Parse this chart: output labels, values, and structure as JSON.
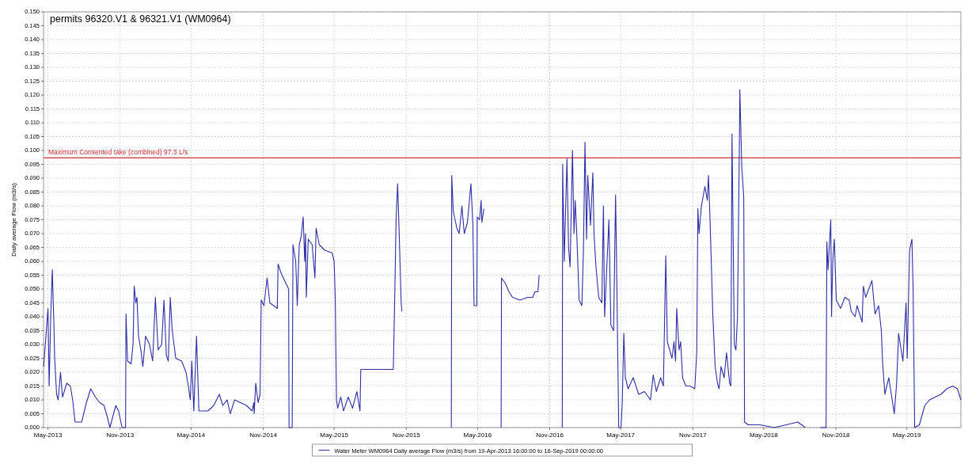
{
  "chart_data": {
    "type": "line",
    "title": "permits 96320.V1 & 96321.V1 (WM0964)",
    "ylabel": "Daily average Flow (m3/s)",
    "xlim": [
      "2013-04-19T16:00",
      "2019-09-16"
    ],
    "xticks": [
      {
        "value": "2013-05-01",
        "label": "May-2013"
      },
      {
        "value": "2013-11-01",
        "label": "Nov-2013"
      },
      {
        "value": "2014-05-01",
        "label": "May-2014"
      },
      {
        "value": "2014-11-01",
        "label": "Nov-2014"
      },
      {
        "value": "2015-05-01",
        "label": "May-2015"
      },
      {
        "value": "2015-11-01",
        "label": "Nov-2015"
      },
      {
        "value": "2016-05-01",
        "label": "May-2016"
      },
      {
        "value": "2016-11-01",
        "label": "Nov-2016"
      },
      {
        "value": "2017-05-01",
        "label": "May-2017"
      },
      {
        "value": "2017-11-01",
        "label": "Nov-2017"
      },
      {
        "value": "2018-05-01",
        "label": "May-2018"
      },
      {
        "value": "2018-11-01",
        "label": "Nov-2018"
      },
      {
        "value": "2019-05-01",
        "label": "May-2019"
      }
    ],
    "ylim": [
      0,
      0.15
    ],
    "yticks": [
      {
        "value": 0,
        "label": "0.000"
      },
      0.005,
      {
        "value": 0.01,
        "label": "0.010"
      },
      0.015,
      {
        "value": 0.02,
        "label": "0.020"
      },
      0.025,
      {
        "value": 0.03,
        "label": "0.030"
      },
      0.035,
      {
        "value": 0.04,
        "label": "0.040"
      },
      0.045,
      {
        "value": 0.05,
        "label": "0.050"
      },
      0.055,
      {
        "value": 0.06,
        "label": "0.060"
      },
      0.065,
      {
        "value": 0.07,
        "label": "0.070"
      },
      0.075,
      {
        "value": 0.08,
        "label": "0.080"
      },
      0.085,
      {
        "value": 0.09,
        "label": "0.090"
      },
      0.095,
      {
        "value": 0.1,
        "label": "0.100"
      },
      0.105,
      {
        "value": 0.11,
        "label": "0.110"
      },
      0.115,
      {
        "value": 0.12,
        "label": "0.120"
      },
      0.125,
      {
        "value": 0.13,
        "label": "0.130"
      },
      0.135,
      {
        "value": 0.14,
        "label": "0.140"
      },
      0.145,
      {
        "value": 0.15,
        "label": "0.150"
      }
    ],
    "grid": true,
    "legend": "bottom",
    "line_style": "solid",
    "ref_lines": [
      {
        "axis": "y",
        "value": 0.0973,
        "label": "Maximum Consented take (combined) 97.3 L/s",
        "color": "#d03030"
      }
    ],
    "series": [
      {
        "name": "Water Meter WM0964 Daily average Flow (m3/s) from 19-Apr-2013 16:00:00 to 16-Sep-2019 00:00:00",
        "color": "#2e2ea8",
        "x": [
          "2013-04-20",
          "2013-05-01",
          "2013-05-04",
          "2013-05-08",
          "2013-05-12",
          "2013-05-16",
          "2013-05-18",
          "2013-05-23",
          "2013-05-27",
          "2013-06-02",
          "2013-06-07",
          "2013-06-18",
          "2013-06-27",
          "2013-07-03",
          "2013-07-09",
          "2013-07-26",
          "2013-08-07",
          "2013-08-18",
          "2013-08-30",
          "2013-09-10",
          "2013-09-21",
          "2013-09-29",
          "2013-10-06",
          "2013-10-21",
          "2013-10-28",
          "2013-11-06",
          "2013-11-15",
          "2013-11-16",
          "2013-11-20",
          "2013-11-29",
          "2013-12-04",
          "2013-12-07",
          "2013-12-11",
          "2013-12-14",
          "2013-12-18",
          "2013-12-24",
          "2013-12-29",
          "2014-01-05",
          "2014-01-15",
          "2014-01-23",
          "2014-01-30",
          "2014-02-06",
          "2014-02-15",
          "2014-02-21",
          "2014-02-27",
          "2014-03-04",
          "2014-03-09",
          "2014-03-14",
          "2014-03-23",
          "2014-04-07",
          "2014-04-18",
          "2014-04-24",
          "2014-04-29",
          "2014-05-03",
          "2014-05-08",
          "2014-05-15",
          "2014-05-21",
          "2014-06-13",
          "2014-06-28",
          "2014-07-12",
          "2014-07-21",
          "2014-08-01",
          "2014-08-09",
          "2014-08-20",
          "2014-09-04",
          "2014-09-19",
          "2014-10-04",
          "2014-10-08",
          "2014-10-09",
          "2014-10-13",
          "2014-10-19",
          "2014-10-24",
          "2014-10-27",
          "2014-11-03",
          "2014-11-11",
          "2014-11-18",
          "2014-12-07",
          "2014-12-09",
          "2014-12-16",
          "2014-12-29",
          "2015-01-05",
          "2015-01-06",
          "2015-01-14",
          "2015-01-16",
          "2015-01-23",
          "2015-01-27",
          "2015-02-01",
          "2015-02-06",
          "2015-02-11",
          "2015-02-15",
          "2015-02-17",
          "2015-02-19",
          "2015-02-24",
          "2015-03-06",
          "2015-03-13",
          "2015-03-16",
          "2015-03-24",
          "2015-04-07",
          "2015-04-26",
          "2015-05-01",
          "2015-05-04",
          "2015-05-05",
          "2015-05-07",
          "2015-05-10",
          "2015-05-18",
          "2015-05-25",
          "2015-06-06",
          "2015-06-17",
          "2015-06-28",
          "2015-07-06",
          "2015-07-08",
          "2015-09-29",
          "2015-10-03",
          "2015-10-06",
          "2015-10-10",
          "2015-10-14",
          "2015-10-19",
          "2015-10-21",
          "2015-12-20",
          "2016-02-24",
          "2016-02-25",
          "2016-02-29",
          "2016-03-09",
          "2016-03-15",
          "2016-03-22",
          "2016-03-28",
          "2016-04-05",
          "2016-04-14",
          "2016-04-19",
          "2016-04-22",
          "2016-04-29",
          "2016-04-30",
          "2016-05-06",
          "2016-05-10",
          "2016-05-12",
          "2016-05-17",
          "2016-06-10",
          "2016-06-30",
          "2016-07-01",
          "2016-07-11",
          "2016-07-20",
          "2016-07-29",
          "2016-08-17",
          "2016-09-06",
          "2016-09-19",
          "2016-09-24",
          "2016-10-02",
          "2016-10-05",
          "2016-11-05",
          "2016-12-03",
          "2016-12-04",
          "2016-12-08",
          "2016-12-15",
          "2016-12-19",
          "2016-12-23",
          "2016-12-29",
          "2017-01-02",
          "2017-01-05",
          "2017-01-09",
          "2017-01-15",
          "2017-01-22",
          "2017-01-26",
          "2017-01-30",
          "2017-02-03",
          "2017-02-06",
          "2017-02-13",
          "2017-02-19",
          "2017-02-22",
          "2017-02-27",
          "2017-03-06",
          "2017-03-14",
          "2017-03-18",
          "2017-03-21",
          "2017-04-01",
          "2017-04-06",
          "2017-04-13",
          "2017-04-18",
          "2017-04-20",
          "2017-04-26",
          "2017-05-02",
          "2017-05-05",
          "2017-05-09",
          "2017-05-13",
          "2017-05-20",
          "2017-06-02",
          "2017-06-16",
          "2017-07-01",
          "2017-07-16",
          "2017-07-23",
          "2017-07-31",
          "2017-08-11",
          "2017-08-18",
          "2017-08-24",
          "2017-08-28",
          "2017-09-09",
          "2017-09-14",
          "2017-09-18",
          "2017-09-21",
          "2017-09-27",
          "2017-10-01",
          "2017-10-06",
          "2017-10-14",
          "2017-10-25",
          "2017-11-06",
          "2017-11-11",
          "2017-11-14",
          "2017-11-17",
          "2017-11-23",
          "2017-12-02",
          "2017-12-08",
          "2017-12-11",
          "2017-12-15",
          "2017-12-22",
          "2017-12-28",
          "2018-01-03",
          "2018-01-07",
          "2018-01-12",
          "2018-01-20",
          "2018-01-26",
          "2018-02-03",
          "2018-02-06",
          "2018-02-09",
          "2018-02-15",
          "2018-02-19",
          "2018-02-23",
          "2018-02-28",
          "2018-03-01",
          "2018-03-06",
          "2018-03-11",
          "2018-03-13",
          "2018-03-22",
          "2018-04-21",
          "2018-05-28",
          "2018-07-27",
          "2018-08-15",
          "2018-09-01",
          "2018-09-22",
          "2018-10-07",
          "2018-10-09",
          "2018-10-12",
          "2018-10-19",
          "2018-10-21",
          "2018-10-24",
          "2018-10-28",
          "2018-11-02",
          "2018-11-13",
          "2018-11-24",
          "2018-12-05",
          "2018-12-10",
          "2018-12-20",
          "2018-12-25",
          "2019-01-07",
          "2019-01-10",
          "2019-01-16",
          "2019-02-01",
          "2019-02-09",
          "2019-02-18",
          "2019-02-25",
          "2019-02-28",
          "2019-03-06",
          "2019-03-16",
          "2019-03-30",
          "2019-04-05",
          "2019-04-10",
          "2019-04-21",
          "2019-04-29",
          "2019-05-02",
          "2019-05-08",
          "2019-05-14",
          "2019-05-17",
          "2019-05-21",
          "2019-06-02",
          "2019-06-16",
          "2019-06-28",
          "2019-07-12",
          "2019-07-27",
          "2019-08-11",
          "2019-08-26",
          "2019-09-07",
          "2019-09-16"
        ],
        "values": [
          0.022,
          0.043,
          0.015,
          0.04,
          0.057,
          0.038,
          0.025,
          0.012,
          0.01,
          0.02,
          0.011,
          0.016,
          0.015,
          0.01,
          0.002,
          0.002,
          0.009,
          0.014,
          0.011,
          0.009,
          0.008,
          0.004,
          0.0,
          0.008,
          0.006,
          0.0,
          0.0,
          0.041,
          0.024,
          0.023,
          0.03,
          0.051,
          0.045,
          0.047,
          0.033,
          0.028,
          0.022,
          0.033,
          0.03,
          0.024,
          0.047,
          0.028,
          0.03,
          0.046,
          0.026,
          0.024,
          0.047,
          0.035,
          0.025,
          0.024,
          0.02,
          0.015,
          0.01,
          0.024,
          0.006,
          0.033,
          0.006,
          0.006,
          0.008,
          0.012,
          0.008,
          0.01,
          0.005,
          0.01,
          0.009,
          0.008,
          0.006,
          0.009,
          0.005,
          0.016,
          0.009,
          0.012,
          0.046,
          0.044,
          0.054,
          0.045,
          0.043,
          0.059,
          0.056,
          0.052,
          0.05,
          0.0,
          0.0,
          0.066,
          0.06,
          0.044,
          0.066,
          0.069,
          0.076,
          0.06,
          0.07,
          0.047,
          0.068,
          0.066,
          0.054,
          0.072,
          0.066,
          0.064,
          0.063,
          0.06,
          0.046,
          0.033,
          0.01,
          0.007,
          0.011,
          0.006,
          0.011,
          0.007,
          0.013,
          0.006,
          0.021,
          0.021,
          0.05,
          0.075,
          0.088,
          0.07,
          0.045,
          0.042,
          null,
          0.0,
          0.091,
          0.078,
          0.072,
          0.07,
          0.08,
          0.07,
          0.074,
          0.088,
          0.073,
          0.044,
          0.044,
          0.076,
          0.075,
          0.082,
          0.074,
          0.079,
          null,
          0.0,
          0.054,
          0.052,
          0.049,
          0.047,
          0.046,
          0.047,
          0.047,
          0.049,
          0.049,
          0.055,
          null,
          0.0,
          0.095,
          0.06,
          0.097,
          0.065,
          0.058,
          0.1,
          0.07,
          0.082,
          0.07,
          0.046,
          0.044,
          0.064,
          0.103,
          0.068,
          0.091,
          0.073,
          0.092,
          0.07,
          0.058,
          0.047,
          0.045,
          0.08,
          0.04,
          0.075,
          0.037,
          0.035,
          0.084,
          0.065,
          0.0,
          0.0,
          0.009,
          0.034,
          0.018,
          0.014,
          0.018,
          0.012,
          0.013,
          0.01,
          0.019,
          0.013,
          0.018,
          0.015,
          0.062,
          0.031,
          0.025,
          0.031,
          0.024,
          0.043,
          0.028,
          0.031,
          0.018,
          0.015,
          0.015,
          0.014,
          0.027,
          0.079,
          0.07,
          0.08,
          0.087,
          0.082,
          0.091,
          0.075,
          0.041,
          0.022,
          0.016,
          0.014,
          0.022,
          0.018,
          0.027,
          0.016,
          0.015,
          0.106,
          0.03,
          0.028,
          0.04,
          0.104,
          0.122,
          0.094,
          0.083,
          0.002,
          0.001,
          0.001,
          0.0,
          0.002,
          0.0,
          null,
          0.0,
          0.0,
          0.067,
          0.057,
          0.075,
          0.04,
          0.06,
          0.068,
          0.046,
          0.043,
          0.047,
          0.046,
          0.042,
          0.04,
          0.044,
          0.038,
          0.051,
          0.047,
          0.053,
          0.041,
          0.044,
          0.035,
          0.024,
          0.012,
          0.018,
          0.005,
          0.016,
          0.034,
          0.024,
          0.045,
          0.025,
          0.064,
          0.068,
          0.05,
          0.0,
          0.001,
          0.008,
          0.01,
          0.011,
          0.012,
          0.014,
          0.015,
          0.014,
          0.01
        ]
      }
    ]
  }
}
